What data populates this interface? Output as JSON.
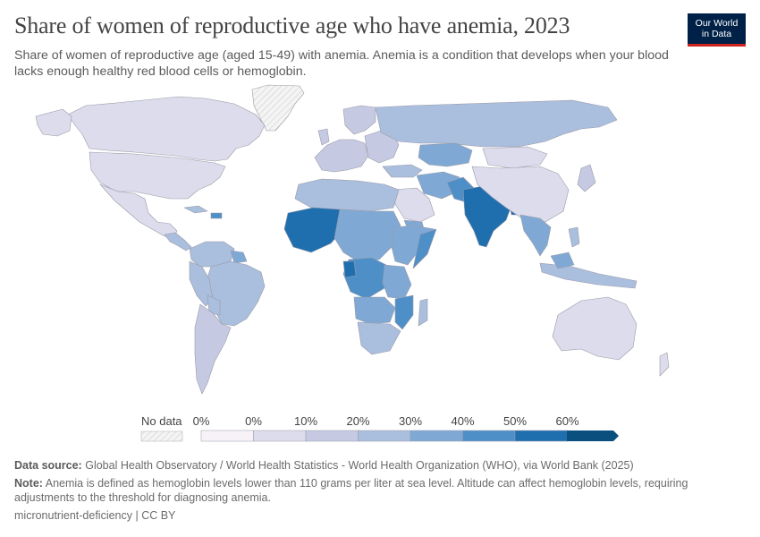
{
  "header": {
    "title": "Share of women of reproductive age who have anemia, 2023",
    "subtitle": "Share of women of reproductive age (aged 15-49) with anemia. Anemia is a condition that develops when your blood lacks enough healthy red blood cells or hemoglobin."
  },
  "logo": {
    "line1": "Our World",
    "line2": "in Data"
  },
  "legend": {
    "no_data_label": "No data",
    "ticks": [
      "0%",
      "0%",
      "10%",
      "20%",
      "30%",
      "40%",
      "50%",
      "60%"
    ],
    "colors": [
      "#f7f2f7",
      "#dcdcec",
      "#c5cae2",
      "#aabedd",
      "#7fa9d4",
      "#4f8fc8",
      "#1f6faf",
      "#0b4f7f"
    ]
  },
  "footer": {
    "source_label": "Data source:",
    "source_text": "Global Health Observatory / World Health Statistics - World Health Organization (WHO), via World Bank (2025)",
    "note_label": "Note:",
    "note_text": "Anemia is defined as hemoglobin levels lower than 110 grams per liter at sea level. Altitude can affect hemoglobin levels, requiring adjustments to the threshold for diagnosing anemia.",
    "license": "micronutrient-deficiency | CC BY"
  }
}
